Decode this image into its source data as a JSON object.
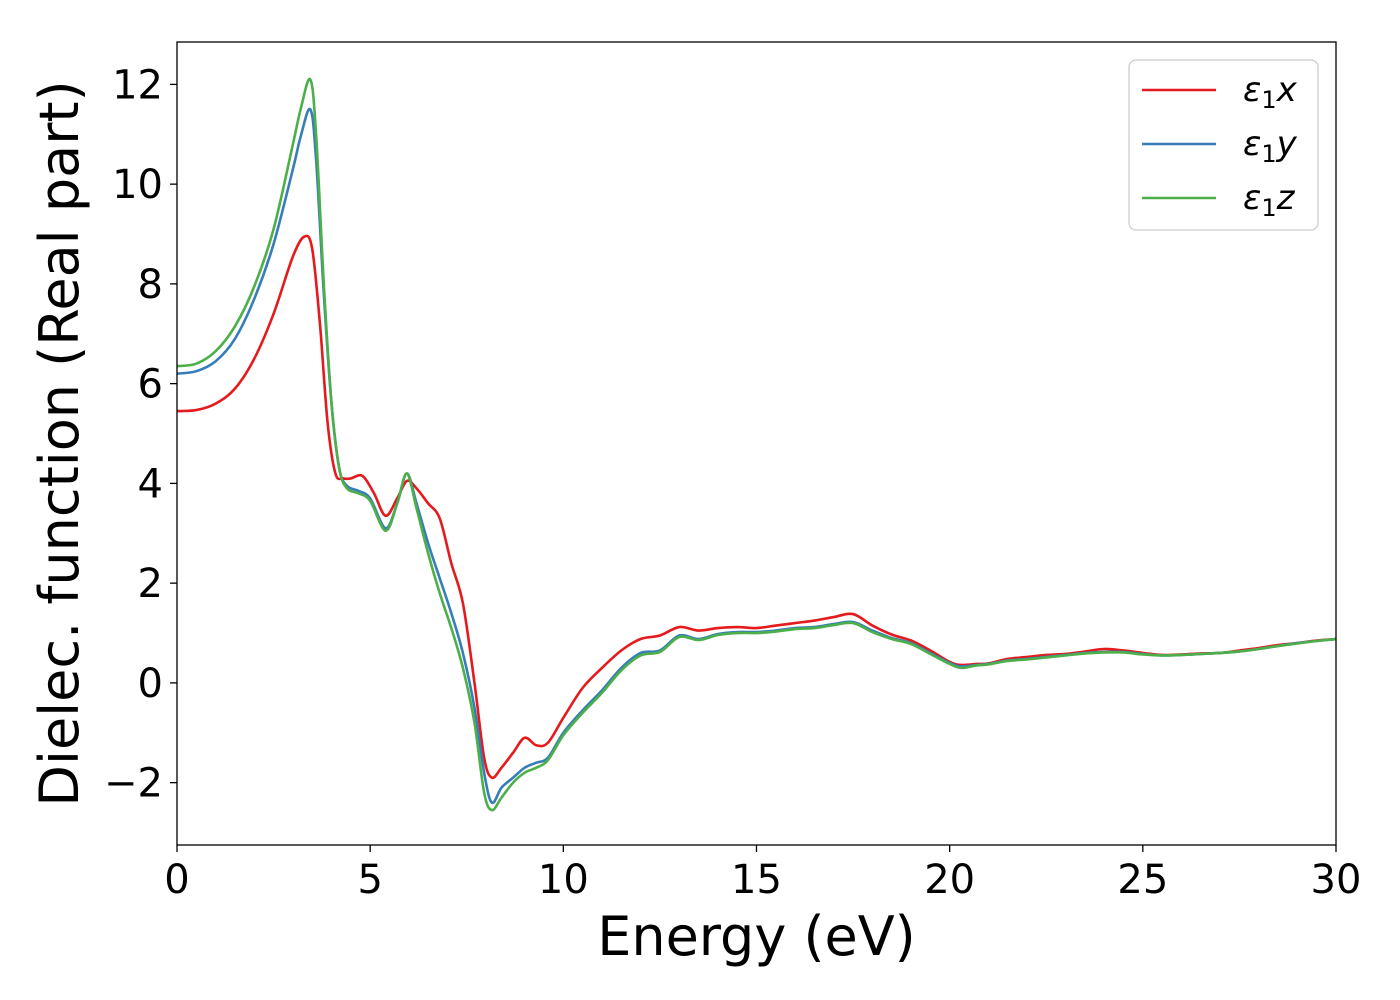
{
  "chart_data": {
    "type": "line",
    "xlabel": "Energy (eV)",
    "ylabel": "Dielec. function (Real part)",
    "xlim": [
      0,
      30
    ],
    "ylim": [
      -3.25,
      12.85
    ],
    "xticks": [
      "0",
      "5",
      "10",
      "15",
      "20",
      "25",
      "30"
    ],
    "yticks": [
      "−2",
      "0",
      "2",
      "4",
      "6",
      "8",
      "10",
      "12"
    ],
    "legend_position": "top-right",
    "grid": false,
    "series": [
      {
        "name": "ε1x",
        "color": "#e41a1c",
        "x": [
          0,
          0.5,
          1,
          1.5,
          2,
          2.5,
          3,
          3.3,
          3.5,
          3.7,
          3.9,
          4.1,
          4.3,
          4.5,
          4.8,
          5.1,
          5.4,
          5.7,
          5.95,
          6.2,
          6.5,
          6.8,
          7.1,
          7.4,
          7.7,
          7.95,
          8.15,
          8.4,
          8.7,
          9,
          9.3,
          9.6,
          10,
          10.5,
          11,
          11.5,
          12,
          12.5,
          13,
          13.5,
          14,
          14.5,
          15,
          15.5,
          16,
          16.5,
          17,
          17.5,
          18,
          18.5,
          19,
          19.5,
          20,
          20.3,
          20.7,
          21,
          21.5,
          22,
          22.5,
          23,
          23.5,
          24,
          24.5,
          25,
          25.5,
          26,
          26.5,
          27,
          27.5,
          28,
          28.5,
          29,
          29.5,
          30
        ],
        "y": [
          5.45,
          5.47,
          5.6,
          5.9,
          6.5,
          7.4,
          8.55,
          8.95,
          8.7,
          7.2,
          5.2,
          4.2,
          4.1,
          4.1,
          4.15,
          3.8,
          3.35,
          3.7,
          4.05,
          3.9,
          3.6,
          3.3,
          2.4,
          1.6,
          0.0,
          -1.5,
          -1.9,
          -1.7,
          -1.4,
          -1.1,
          -1.25,
          -1.2,
          -0.7,
          -0.1,
          0.3,
          0.65,
          0.88,
          0.95,
          1.12,
          1.05,
          1.1,
          1.12,
          1.1,
          1.15,
          1.2,
          1.25,
          1.32,
          1.38,
          1.15,
          0.97,
          0.85,
          0.65,
          0.42,
          0.36,
          0.38,
          0.39,
          0.48,
          0.52,
          0.56,
          0.58,
          0.63,
          0.68,
          0.65,
          0.6,
          0.56,
          0.57,
          0.59,
          0.6,
          0.65,
          0.7,
          0.76,
          0.8,
          0.85,
          0.88
        ]
      },
      {
        "name": "ε1y",
        "color": "#377eb8",
        "x": [
          0,
          0.5,
          1,
          1.5,
          2,
          2.5,
          3,
          3.2,
          3.45,
          3.6,
          3.8,
          4,
          4.2,
          4.4,
          4.7,
          5,
          5.4,
          5.7,
          5.95,
          6.2,
          6.5,
          6.8,
          7.1,
          7.4,
          7.7,
          7.95,
          8.15,
          8.4,
          8.7,
          9,
          9.3,
          9.6,
          10,
          10.5,
          11,
          11.5,
          12,
          12.5,
          13,
          13.5,
          14,
          14.5,
          15,
          15.5,
          16,
          16.5,
          17,
          17.5,
          18,
          18.5,
          19,
          19.5,
          20,
          20.3,
          20.7,
          21,
          21.5,
          22,
          22.5,
          23,
          23.5,
          24,
          24.5,
          25,
          25.5,
          26,
          26.5,
          27,
          27.5,
          28,
          28.5,
          29,
          29.5,
          30
        ],
        "y": [
          6.2,
          6.25,
          6.45,
          6.9,
          7.7,
          8.8,
          10.3,
          10.95,
          11.5,
          10.5,
          7.8,
          5.6,
          4.3,
          3.95,
          3.85,
          3.7,
          3.1,
          3.6,
          4.2,
          3.6,
          2.8,
          2.1,
          1.4,
          0.6,
          -0.5,
          -1.8,
          -2.4,
          -2.1,
          -1.9,
          -1.7,
          -1.6,
          -1.5,
          -1.0,
          -0.55,
          -0.15,
          0.3,
          0.6,
          0.65,
          0.95,
          0.88,
          0.98,
          1.02,
          1.02,
          1.05,
          1.1,
          1.12,
          1.18,
          1.22,
          1.05,
          0.9,
          0.8,
          0.6,
          0.4,
          0.33,
          0.36,
          0.38,
          0.45,
          0.48,
          0.52,
          0.56,
          0.6,
          0.62,
          0.62,
          0.58,
          0.55,
          0.56,
          0.58,
          0.6,
          0.63,
          0.68,
          0.74,
          0.8,
          0.84,
          0.88
        ]
      },
      {
        "name": "ε1z",
        "color": "#4daf4a",
        "x": [
          0,
          0.5,
          1,
          1.5,
          2,
          2.5,
          3,
          3.2,
          3.45,
          3.6,
          3.8,
          4,
          4.2,
          4.4,
          4.7,
          5,
          5.4,
          5.7,
          5.95,
          6.2,
          6.5,
          6.8,
          7.1,
          7.4,
          7.7,
          7.95,
          8.15,
          8.4,
          8.7,
          9,
          9.3,
          9.6,
          10,
          10.5,
          11,
          11.5,
          12,
          12.5,
          13,
          13.5,
          14,
          14.5,
          15,
          15.5,
          16,
          16.5,
          17,
          17.5,
          18,
          18.5,
          19,
          19.5,
          20,
          20.3,
          20.7,
          21,
          21.5,
          22,
          22.5,
          23,
          23.5,
          24,
          24.5,
          25,
          25.5,
          26,
          26.5,
          27,
          27.5,
          28,
          28.5,
          29,
          29.5,
          30
        ],
        "y": [
          6.35,
          6.4,
          6.65,
          7.15,
          7.95,
          9.1,
          10.8,
          11.5,
          12.1,
          11.0,
          8.0,
          5.6,
          4.3,
          3.9,
          3.8,
          3.65,
          3.05,
          3.6,
          4.2,
          3.5,
          2.6,
          1.8,
          1.1,
          0.3,
          -0.8,
          -2.2,
          -2.55,
          -2.3,
          -2.0,
          -1.8,
          -1.7,
          -1.55,
          -1.05,
          -0.6,
          -0.2,
          0.25,
          0.55,
          0.62,
          0.92,
          0.86,
          0.96,
          1.0,
          1.0,
          1.03,
          1.08,
          1.1,
          1.16,
          1.2,
          1.02,
          0.88,
          0.78,
          0.58,
          0.38,
          0.3,
          0.35,
          0.37,
          0.44,
          0.47,
          0.51,
          0.55,
          0.59,
          0.61,
          0.61,
          0.57,
          0.55,
          0.56,
          0.58,
          0.6,
          0.63,
          0.68,
          0.74,
          0.79,
          0.84,
          0.88
        ]
      }
    ]
  }
}
